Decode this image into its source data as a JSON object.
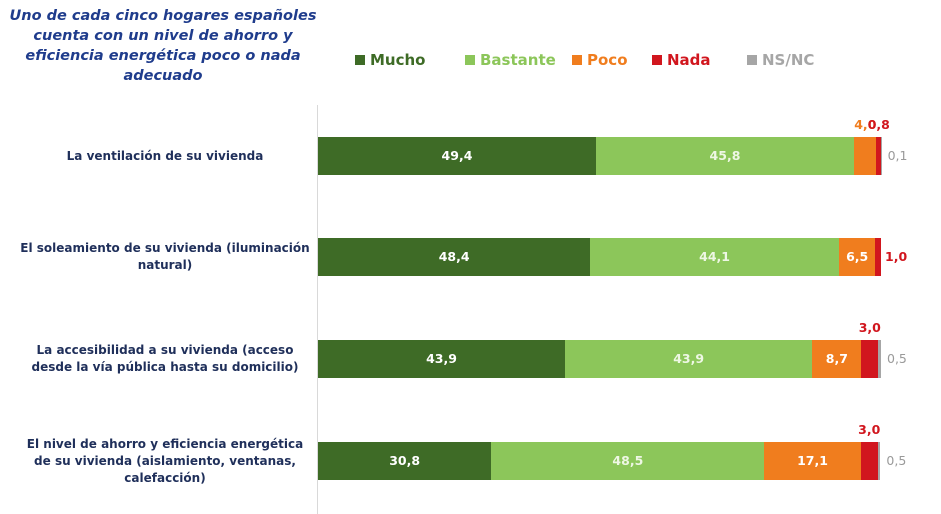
{
  "chart_data": {
    "type": "stacked-bar-horizontal",
    "title": "Uno de cada cinco hogares españoles cuenta con un nivel de ahorro y eficiencia energética poco o nada adecuado",
    "categories": [
      "La ventilación de su vivienda",
      "El soleamiento de su vivienda (iluminación natural)",
      "La accesibilidad a su vivienda (acceso desde la vía pública hasta su domicilio)",
      "El nivel de ahorro y eficiencia energética de su vivienda (aislamiento, ventanas, calefacción)"
    ],
    "xlim": [
      0,
      100
    ],
    "legend": "top",
    "series": [
      {
        "name": "Mucho",
        "color": "#3e6b26",
        "values": [
          49.4,
          48.4,
          43.9,
          30.8
        ],
        "value_labels": [
          "49,4",
          "48,4",
          "43,9",
          "30,8"
        ]
      },
      {
        "name": "Bastante",
        "color": "#8cc65a",
        "values": [
          45.8,
          44.1,
          43.9,
          48.5
        ],
        "value_labels": [
          "45,8",
          "44,1",
          "43,9",
          "48,5"
        ]
      },
      {
        "name": "Poco",
        "color": "#f07d1e",
        "values": [
          4.0,
          6.5,
          8.7,
          17.1
        ],
        "value_labels": [
          "4,0",
          "6,5",
          "8,7",
          "17,1"
        ]
      },
      {
        "name": "Nada",
        "color": "#d1161e",
        "values": [
          0.8,
          1.0,
          3.0,
          3.0
        ],
        "value_labels": [
          "0,8",
          "1,0",
          "3,0",
          "3,0"
        ]
      },
      {
        "name": "NS/NC",
        "color": "#a6a6a6",
        "values": [
          0.1,
          0,
          0.5,
          0.5
        ],
        "value_labels": [
          "0,1",
          null,
          "0,5",
          "0,5"
        ]
      }
    ]
  }
}
